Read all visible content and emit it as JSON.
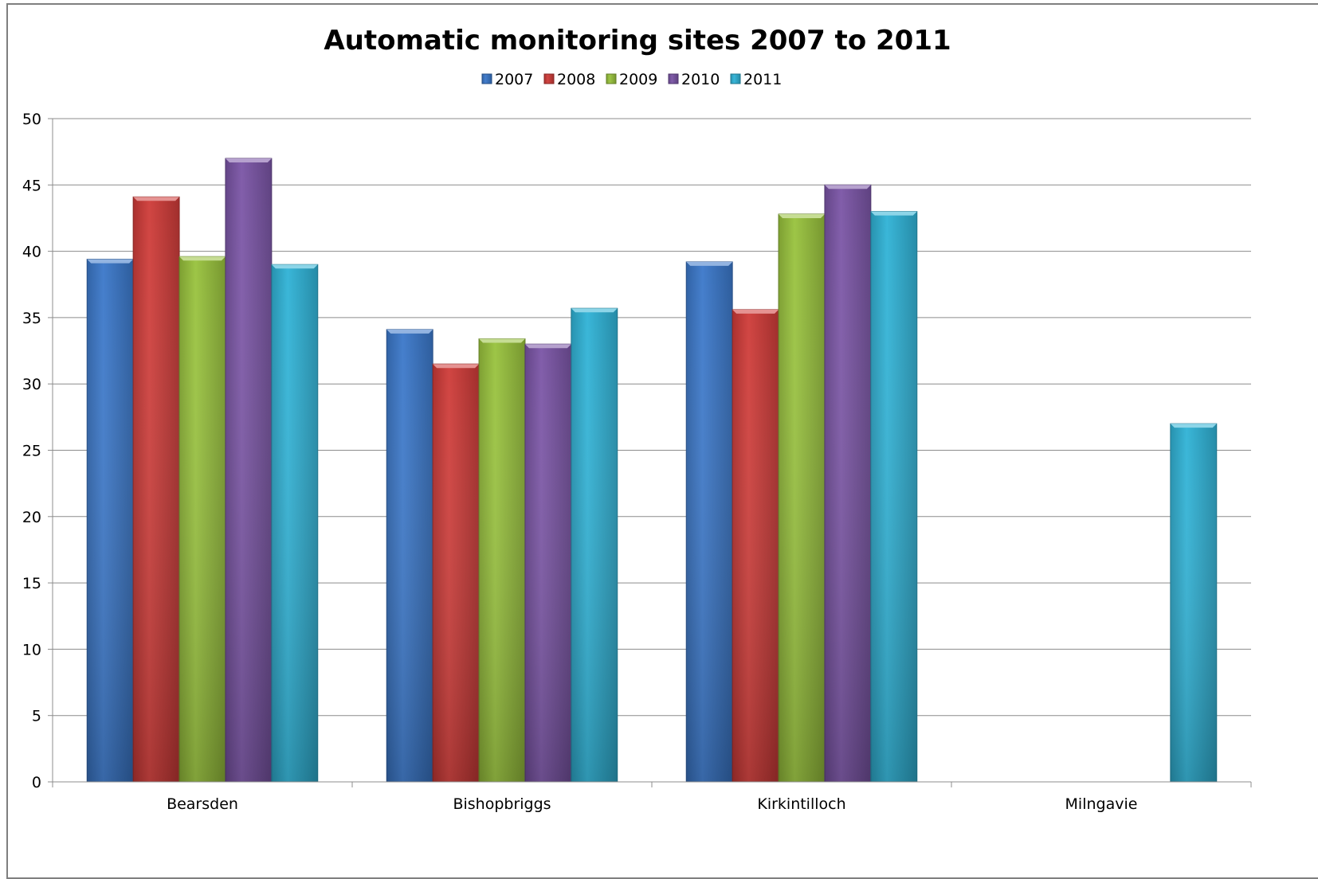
{
  "chart_data": {
    "type": "bar",
    "title": "Automatic monitoring sites 2007 to 2011",
    "xlabel": "",
    "ylabel": "",
    "categories": [
      "Bearsden",
      "Bishopbriggs",
      "Kirkintilloch",
      "Milngavie"
    ],
    "series": [
      {
        "name": "2007",
        "color": "#3a77c9",
        "values": [
          39.4,
          34.1,
          39.2,
          null
        ]
      },
      {
        "name": "2008",
        "color": "#cf3b38",
        "values": [
          44.1,
          31.5,
          35.6,
          null
        ]
      },
      {
        "name": "2009",
        "color": "#98c23c",
        "values": [
          39.6,
          33.4,
          42.8,
          null
        ]
      },
      {
        "name": "2010",
        "color": "#7a54a6",
        "values": [
          47.0,
          33.0,
          45.0,
          null
        ]
      },
      {
        "name": "2011",
        "color": "#2fb2d6",
        "values": [
          39.0,
          35.7,
          43.0,
          27.0
        ]
      }
    ],
    "ylim": [
      0,
      50
    ],
    "yticks": [
      0,
      5,
      10,
      15,
      20,
      25,
      30,
      35,
      40,
      45,
      50
    ],
    "grid": true,
    "legend": "top-center"
  }
}
